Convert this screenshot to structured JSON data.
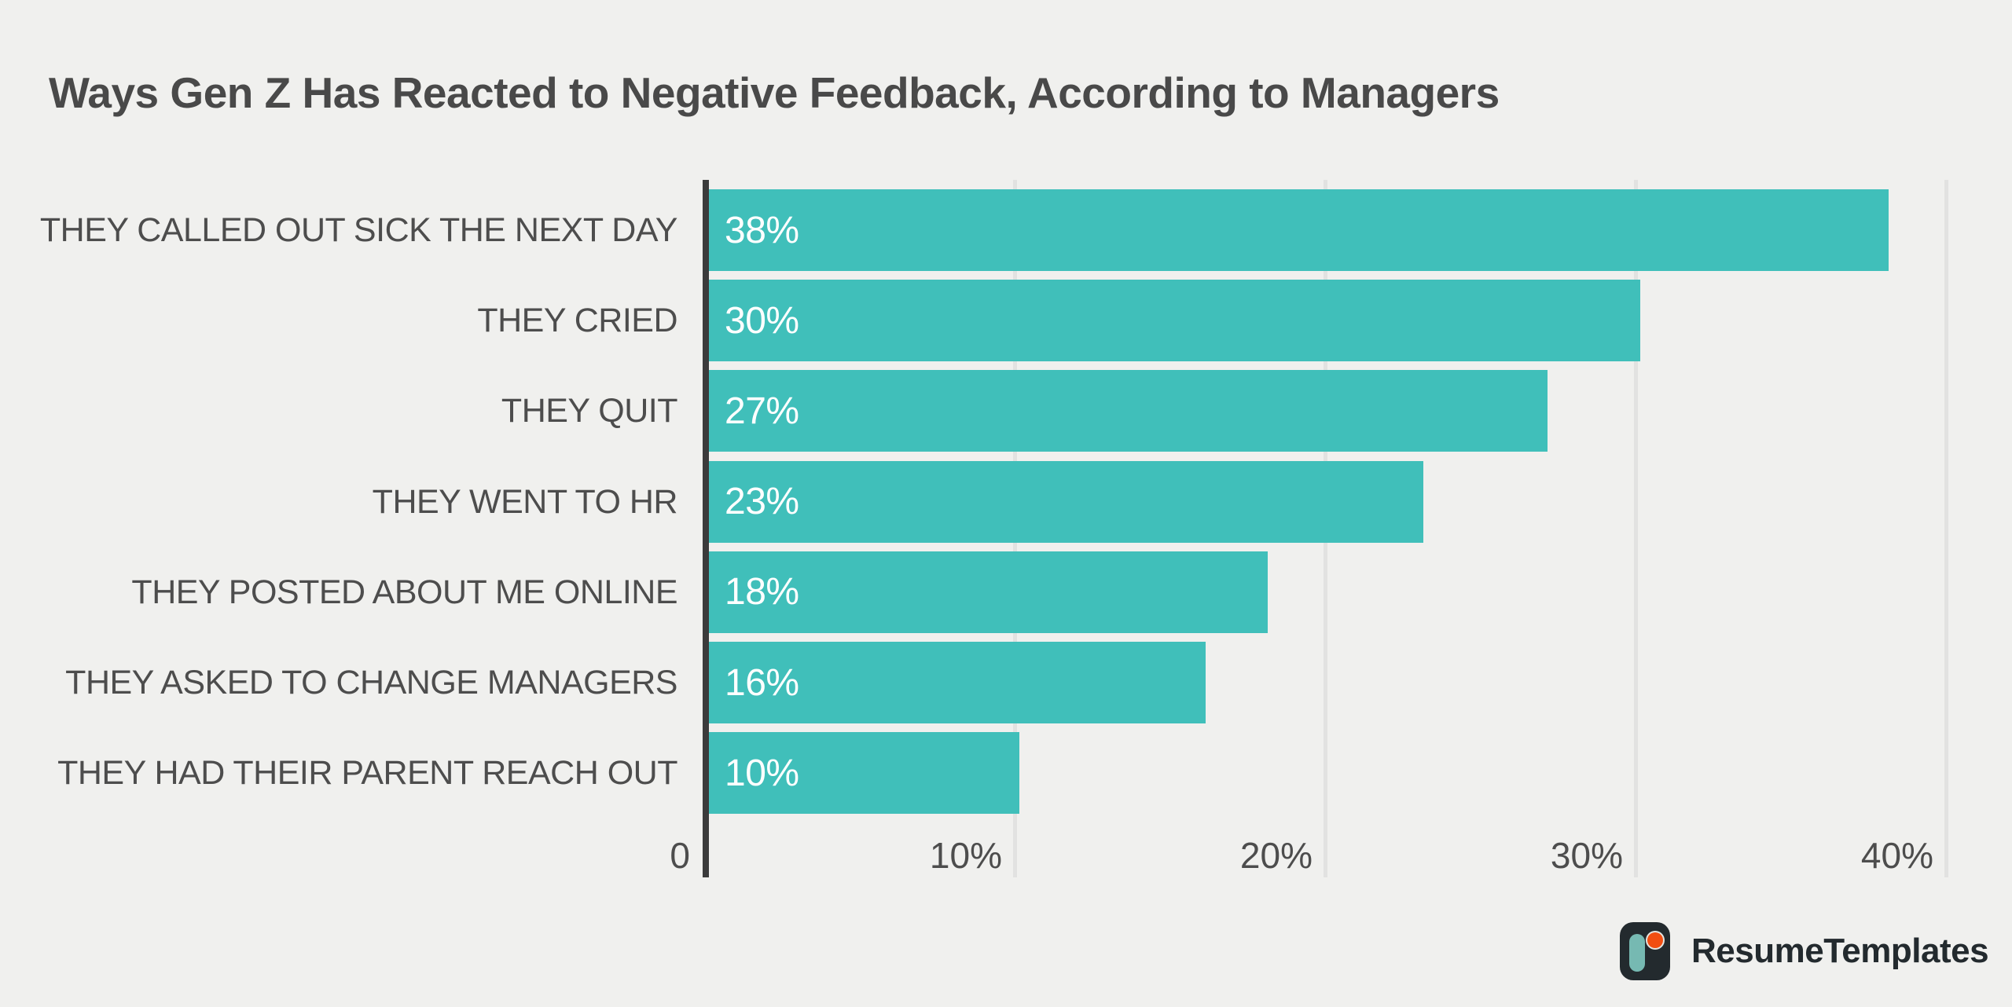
{
  "title": "Ways Gen Z Has Reacted to Negative Feedback, According to Managers",
  "chart_data": {
    "type": "bar",
    "orientation": "horizontal",
    "title": "Ways Gen Z Has Reacted to Negative Feedback, According to Managers",
    "categories": [
      "THEY CALLED OUT SICK THE NEXT DAY",
      "THEY CRIED",
      "THEY QUIT",
      "THEY WENT TO HR",
      "THEY POSTED ABOUT ME ONLINE",
      "THEY ASKED TO CHANGE MANAGERS",
      "THEY HAD THEIR PARENT REACH OUT"
    ],
    "values": [
      38,
      30,
      27,
      23,
      18,
      16,
      10
    ],
    "value_labels": [
      "38%",
      "30%",
      "27%",
      "23%",
      "18%",
      "16%",
      "10%"
    ],
    "xlabel": "",
    "ylabel": "",
    "xlim": [
      0,
      40
    ],
    "xticks": [
      {
        "value": 0,
        "label": "0"
      },
      {
        "value": 10,
        "label": "10%"
      },
      {
        "value": 20,
        "label": "20%"
      },
      {
        "value": 30,
        "label": "30%"
      },
      {
        "value": 40,
        "label": "40%"
      }
    ],
    "grid": "vertical-gridlines-on",
    "legend": "none"
  },
  "colors": {
    "background": "#F0F0EE",
    "bar": "#40BFBA",
    "axis_line": "#3B3B3B",
    "gridline": "#E2E2E1",
    "title_text": "#494949",
    "label_text": "#4D4D4D",
    "value_text": "#FFFFFF",
    "logo_dark": "#232A2E",
    "logo_teal": "#76B9B2",
    "logo_orange": "#F24E12"
  },
  "branding": {
    "name": "ResumeTemplates",
    "logo_icon": "resume-templates-mark"
  }
}
